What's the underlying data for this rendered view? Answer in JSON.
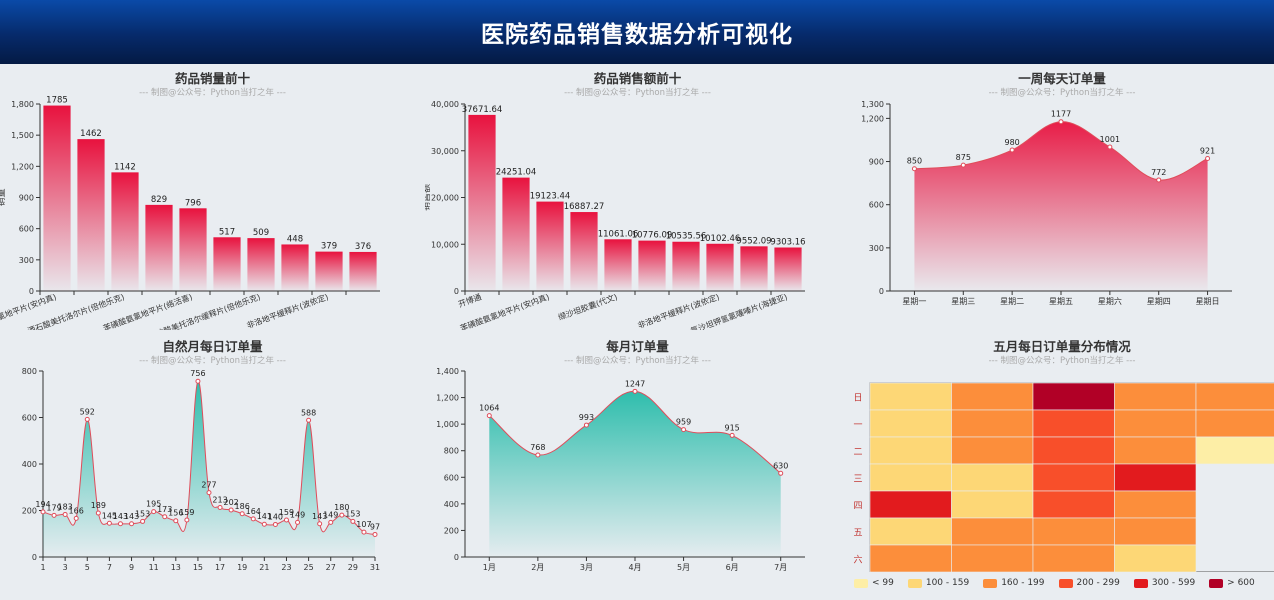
{
  "page_title": "医院药品销售数据分析可视化",
  "chart_data": [
    {
      "id": "top_qty",
      "type": "bar",
      "title": "药品销量前十",
      "subtitle": "--- 制图@公众号：Python当打之年 ---",
      "ylabel": "销量",
      "ylim": [
        0,
        1800
      ],
      "yticks": [
        0,
        300,
        600,
        900,
        1200,
        1500,
        1800
      ],
      "categories": [
        "苯磺酸氨氯地平片(安内真)",
        "",
        "酒石酸美托洛尔片(倍他乐克)",
        "",
        "苯磺酸氨氯地平片(络活喜)",
        "",
        "G琥珀酸美托洛尔缓释片(倍他乐克)",
        "",
        "非洛地平缓释片(波依定)",
        ""
      ],
      "values": [
        1785,
        1462,
        1142,
        829,
        796,
        517,
        509,
        448,
        379,
        376
      ]
    },
    {
      "id": "top_amount",
      "type": "bar",
      "title": "药品销售额前十",
      "subtitle": "--- 制图@公众号：Python当打之年 ---",
      "ylabel": "销售额",
      "ylim": [
        0,
        40000
      ],
      "yticks": [
        0,
        10000,
        20000,
        30000,
        40000
      ],
      "categories": [
        "开博通",
        "",
        "苯磺酸氨氯地平片(安内真)",
        "",
        "缬沙坦胶囊(代文)",
        "",
        "",
        "",
        "",
        ""
      ],
      "values": [
        37671.64,
        24251.04,
        19123.44,
        16887.27,
        11061.06,
        10776.09,
        10535.56,
        10102.46,
        9552.09,
        9303.16
      ],
      "data_labels": [
        "37671.64",
        "24251.04",
        "19123.44",
        "16887.27",
        "11061.06",
        "10776.09",
        "10535.56",
        "10102.46",
        "9552.09",
        "9303.16"
      ],
      "extra_axis_labels": [
        "非洛地平缓释片(波依定)",
        "氯沙坦钾氢氯噻嗪片(海捷亚)"
      ]
    },
    {
      "id": "weekday",
      "type": "area",
      "title": "一周每天订单量",
      "subtitle": "--- 制图@公众号：Python当打之年 ---",
      "ylim": [
        0,
        1300
      ],
      "yticks": [
        0,
        300,
        600,
        900,
        1200,
        1300
      ],
      "categories": [
        "星期一",
        "星期三",
        "星期二",
        "星期五",
        "星期六",
        "星期四",
        "星期日"
      ],
      "values": [
        850,
        875,
        980,
        1177,
        1001,
        772,
        921
      ]
    },
    {
      "id": "daily",
      "type": "area",
      "title": "自然月每日订单量",
      "subtitle": "--- 制图@公众号：Python当打之年 ---",
      "ylim": [
        0,
        800
      ],
      "yticks": [
        0,
        200,
        400,
        600,
        800
      ],
      "xticks": [
        1,
        3,
        5,
        7,
        9,
        11,
        13,
        15,
        17,
        19,
        21,
        23,
        25,
        27,
        29,
        31
      ],
      "x": [
        1,
        2,
        3,
        4,
        5,
        6,
        7,
        8,
        9,
        10,
        11,
        12,
        13,
        14,
        15,
        16,
        17,
        18,
        19,
        20,
        21,
        22,
        23,
        24,
        25,
        26,
        27,
        28,
        29,
        30,
        31
      ],
      "values": [
        194,
        179,
        183,
        166,
        592,
        189,
        145,
        143,
        143,
        153,
        195,
        173,
        156,
        159,
        756,
        277,
        213,
        202,
        186,
        164,
        141,
        140,
        159,
        149,
        588,
        143,
        149,
        180,
        153,
        107,
        97
      ]
    },
    {
      "id": "monthly",
      "type": "area",
      "title": "每月订单量",
      "subtitle": "--- 制图@公众号：Python当打之年 ---",
      "ylim": [
        0,
        1400
      ],
      "yticks": [
        0,
        200,
        400,
        600,
        800,
        1000,
        1200,
        1400
      ],
      "categories": [
        "1月",
        "2月",
        "3月",
        "4月",
        "5月",
        "6月",
        "7月"
      ],
      "values": [
        1064,
        768,
        993,
        1247,
        959,
        915,
        630
      ]
    },
    {
      "id": "heatmap",
      "type": "heatmap",
      "title": "五月每日订单量分布情况",
      "subtitle": "--- 制图@公众号：Python当打之年 ---",
      "rows": [
        "日",
        "一",
        "二",
        "三",
        "四",
        "五",
        "六"
      ],
      "grid": [
        [
          1,
          2,
          5,
          2,
          2
        ],
        [
          1,
          2,
          3,
          2,
          2
        ],
        [
          1,
          2,
          3,
          2,
          0
        ],
        [
          1,
          1,
          3,
          4,
          null
        ],
        [
          4,
          1,
          3,
          2,
          null
        ],
        [
          1,
          2,
          2,
          2,
          null
        ],
        [
          2,
          2,
          2,
          1,
          null
        ]
      ],
      "legend": [
        "< 99",
        "100 - 159",
        "160 - 199",
        "200 - 299",
        "300 - 599",
        "> 600"
      ],
      "colors": [
        "#fdeea6",
        "#fdd776",
        "#fc8e3b",
        "#f84f2a",
        "#e21b1e",
        "#b10026"
      ]
    }
  ],
  "colors": {
    "bar_top": "#e8123e",
    "area_red": "#e8123e",
    "area_teal": "#25bba9",
    "line_red": "#e04c5a"
  }
}
